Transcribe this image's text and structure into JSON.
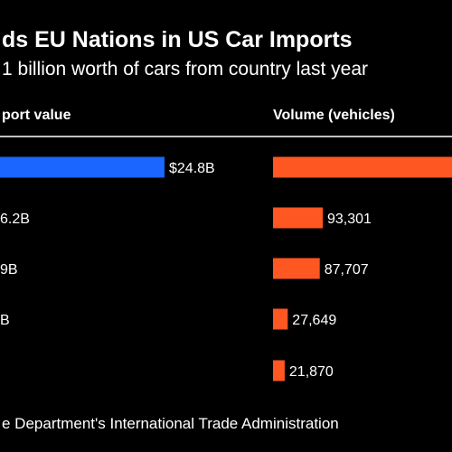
{
  "title": "ds EU Nations in US Car Imports",
  "subtitle": "1 billion worth of cars from country last year",
  "source": "e Department's International Trade Administration",
  "colors": {
    "value_bar": "#1a66ff",
    "volume_bar": "#ff5722",
    "background": "#000000",
    "text": "#ffffff"
  },
  "chart_data": {
    "type": "bar",
    "columns": [
      {
        "key": "value",
        "header": "port value",
        "units": "USD billion",
        "labels": [
          "$24.8B",
          "6.2B",
          "9B",
          "B",
          ""
        ],
        "values": [
          24.8,
          null,
          null,
          null,
          null
        ]
      },
      {
        "key": "volume",
        "header": "Volume (vehicles)",
        "units": "vehicles",
        "labels": [
          "",
          "93,301",
          "87,707",
          "27,649",
          "21,870"
        ],
        "values": [
          null,
          93301,
          87707,
          27649,
          21870
        ]
      }
    ],
    "grid": false,
    "legend": "none"
  }
}
